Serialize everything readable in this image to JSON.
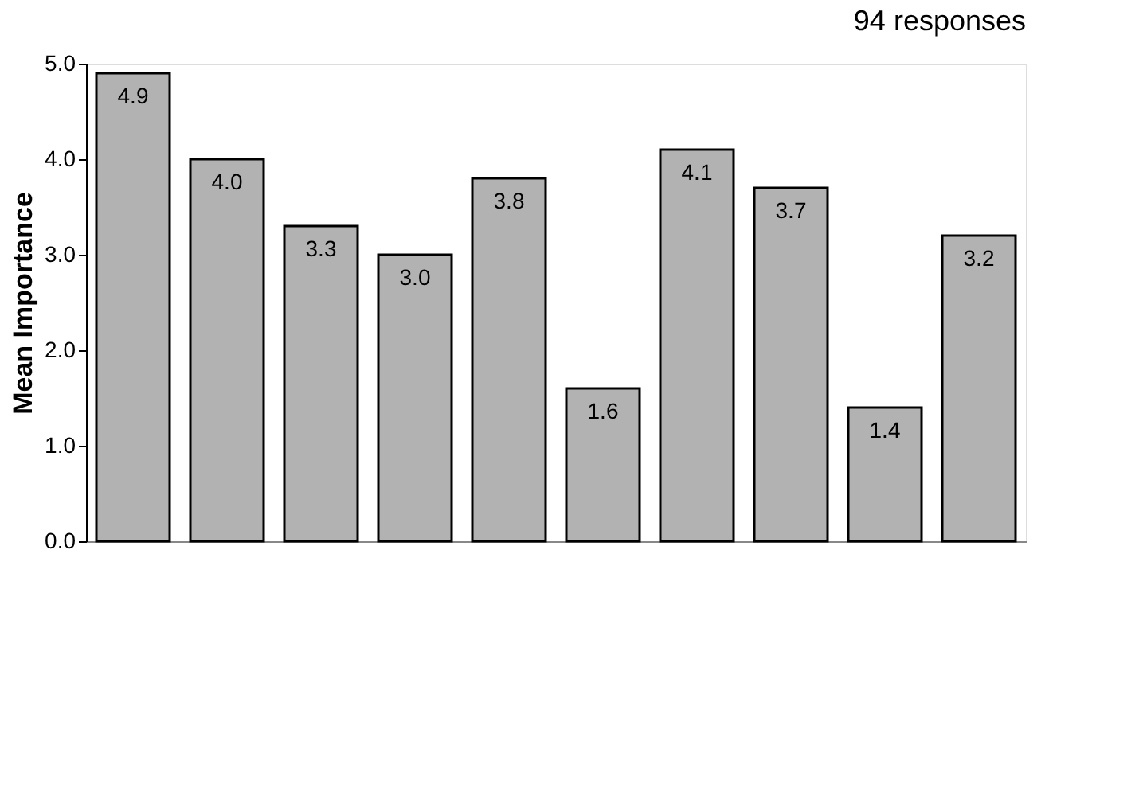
{
  "chart_data": {
    "type": "bar",
    "ylabel": "Mean Importance",
    "annotations": [
      "94 responses"
    ],
    "categories": [
      null,
      null,
      null,
      null,
      null,
      null,
      null,
      null,
      null,
      null
    ],
    "values": [
      4.9,
      4.0,
      3.3,
      3.0,
      3.8,
      1.6,
      4.1,
      3.7,
      1.4,
      3.2
    ],
    "value_labels": [
      "4.9",
      "4.0",
      "3.3",
      "3.0",
      "3.8",
      "1.6",
      "4.1",
      "3.7",
      "1.4",
      "3.2"
    ],
    "color": "#b2b2b2",
    "grid": false,
    "ylim": [
      0,
      5
    ],
    "yticks": [
      {
        "value": 0,
        "label": "0.0"
      },
      {
        "value": 1,
        "label": "1.0"
      },
      {
        "value": 2,
        "label": "2.0"
      },
      {
        "value": 3,
        "label": "3.0"
      },
      {
        "value": 4,
        "label": "4.0"
      },
      {
        "value": 5,
        "label": "5.0"
      }
    ]
  }
}
